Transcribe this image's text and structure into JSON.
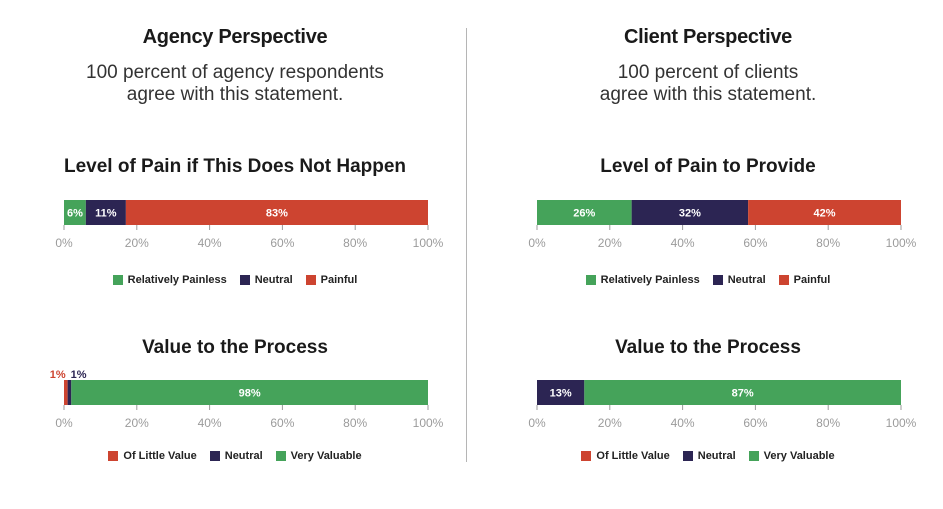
{
  "colors": {
    "green": "#45a35a",
    "navy": "#2c2553",
    "red": "#cd4430",
    "axis": "#9b9b9b"
  },
  "panels": [
    {
      "heading": "Agency Perspective",
      "statement_line1": "100 percent of agency respondents",
      "statement_line2": "agree with this statement."
    },
    {
      "heading": "Client Perspective",
      "statement_line1": "100 percent of clients",
      "statement_line2": "agree with this statement."
    }
  ],
  "chart_data": [
    {
      "type": "bar",
      "title": "Level of Pain if This Does Not Happen",
      "orientation": "horizontal-stacked",
      "x_ticks": [
        "0%",
        "20%",
        "40%",
        "60%",
        "80%",
        "100%"
      ],
      "xlim": [
        0,
        100
      ],
      "series": [
        {
          "name": "Relatively Painless",
          "value": 6,
          "label": "6%",
          "color": "#45a35a"
        },
        {
          "name": "Neutral",
          "value": 11,
          "label": "11%",
          "color": "#2c2553"
        },
        {
          "name": "Painful",
          "value": 83,
          "label": "83%",
          "color": "#cd4430"
        }
      ],
      "legend_position": "bottom"
    },
    {
      "type": "bar",
      "title": "Value to the Process",
      "orientation": "horizontal-stacked",
      "x_ticks": [
        "0%",
        "20%",
        "40%",
        "60%",
        "80%",
        "100%"
      ],
      "xlim": [
        0,
        100
      ],
      "series": [
        {
          "name": "Of Little Value",
          "value": 1,
          "label": "1%",
          "color": "#cd4430"
        },
        {
          "name": "Neutral",
          "value": 1,
          "label": "1%",
          "color": "#2c2553"
        },
        {
          "name": "Very Valuable",
          "value": 98,
          "label": "98%",
          "color": "#45a35a"
        }
      ],
      "legend_position": "bottom"
    },
    {
      "type": "bar",
      "title": "Level of Pain to Provide",
      "orientation": "horizontal-stacked",
      "x_ticks": [
        "0%",
        "20%",
        "40%",
        "60%",
        "80%",
        "100%"
      ],
      "xlim": [
        0,
        100
      ],
      "series": [
        {
          "name": "Relatively Painless",
          "value": 26,
          "label": "26%",
          "color": "#45a35a"
        },
        {
          "name": "Neutral",
          "value": 32,
          "label": "32%",
          "color": "#2c2553"
        },
        {
          "name": "Painful",
          "value": 42,
          "label": "42%",
          "color": "#cd4430"
        }
      ],
      "legend_position": "bottom"
    },
    {
      "type": "bar",
      "title": "Value to the Process",
      "orientation": "horizontal-stacked",
      "x_ticks": [
        "0%",
        "20%",
        "40%",
        "60%",
        "80%",
        "100%"
      ],
      "xlim": [
        0,
        100
      ],
      "series": [
        {
          "name": "Of Little Value",
          "value": 0,
          "label": "",
          "color": "#cd4430"
        },
        {
          "name": "Neutral",
          "value": 13,
          "label": "13%",
          "color": "#2c2553"
        },
        {
          "name": "Very Valuable",
          "value": 87,
          "label": "87%",
          "color": "#45a35a"
        }
      ],
      "legend_position": "bottom"
    }
  ]
}
